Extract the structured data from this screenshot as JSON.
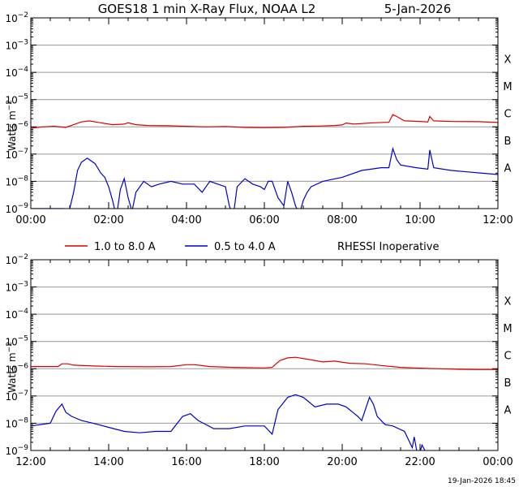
{
  "title": "GOES18 1 min X-Ray Flux, NOAA L2",
  "date": "5-Jan-2026",
  "footer_timestamp": "19-Jan-2026 18:45",
  "legend": {
    "long_label": "1.0 to 8.0 A",
    "short_label": "0.5 to 4.0 A",
    "note": "RHESSI Inoperative"
  },
  "colors": {
    "long": "#dd0000",
    "short": "#0000cc",
    "grid": "#999999",
    "axis": "#000000"
  },
  "chart_data": [
    {
      "type": "line",
      "title": "GOES18 1 min X-Ray Flux, NOAA L2  5-Jan-2026 (00:00-12:00)",
      "ylabel": "Watts m^-2",
      "yscale": "log",
      "ylim_exp": [
        -9,
        -2
      ],
      "ytick_exps": [
        -9,
        -8,
        -7,
        -6,
        -5,
        -4,
        -3,
        -2
      ],
      "xlim_hours": [
        0,
        12
      ],
      "xticks": [
        "00:00",
        "02:00",
        "04:00",
        "06:00",
        "08:00",
        "10:00",
        "12:00"
      ],
      "flare_classes": [
        {
          "label": "A",
          "exp": -8
        },
        {
          "label": "B",
          "exp": -7
        },
        {
          "label": "C",
          "exp": -6
        },
        {
          "label": "M",
          "exp": -5
        },
        {
          "label": "X",
          "exp": -4
        }
      ],
      "grid": true,
      "series": [
        {
          "name": "1.0 to 8.0 A",
          "color_key": "long",
          "points": [
            [
              0,
              -6.05
            ],
            [
              0.3,
              -6.0
            ],
            [
              0.6,
              -5.98
            ],
            [
              0.9,
              -6.02
            ],
            [
              1.1,
              -5.92
            ],
            [
              1.3,
              -5.82
            ],
            [
              1.5,
              -5.78
            ],
            [
              1.8,
              -5.85
            ],
            [
              2.1,
              -5.92
            ],
            [
              2.4,
              -5.9
            ],
            [
              2.5,
              -5.85
            ],
            [
              2.7,
              -5.92
            ],
            [
              3.0,
              -5.95
            ],
            [
              3.5,
              -5.96
            ],
            [
              4.0,
              -5.98
            ],
            [
              4.5,
              -6.0
            ],
            [
              5.0,
              -5.99
            ],
            [
              5.5,
              -6.02
            ],
            [
              6.0,
              -6.03
            ],
            [
              6.5,
              -6.02
            ],
            [
              7.0,
              -5.98
            ],
            [
              7.4,
              -5.97
            ],
            [
              7.8,
              -5.95
            ],
            [
              8.0,
              -5.93
            ],
            [
              8.1,
              -5.86
            ],
            [
              8.3,
              -5.9
            ],
            [
              8.8,
              -5.85
            ],
            [
              9.2,
              -5.83
            ],
            [
              9.3,
              -5.55
            ],
            [
              9.4,
              -5.62
            ],
            [
              9.6,
              -5.78
            ],
            [
              10.0,
              -5.8
            ],
            [
              10.2,
              -5.82
            ],
            [
              10.25,
              -5.62
            ],
            [
              10.35,
              -5.78
            ],
            [
              10.8,
              -5.8
            ],
            [
              11.5,
              -5.81
            ],
            [
              12.0,
              -5.84
            ]
          ]
        },
        {
          "name": "0.5 to 4.0 A",
          "color_key": "short",
          "points": [
            [
              0,
              -9.0
            ],
            [
              0.5,
              -9.0
            ],
            [
              0.85,
              -9.0
            ],
            [
              0.9,
              -9.3
            ],
            [
              1.0,
              -9.0
            ],
            [
              1.1,
              -8.4
            ],
            [
              1.2,
              -7.6
            ],
            [
              1.3,
              -7.3
            ],
            [
              1.45,
              -7.15
            ],
            [
              1.65,
              -7.35
            ],
            [
              1.8,
              -7.7
            ],
            [
              1.9,
              -7.85
            ],
            [
              2.0,
              -8.2
            ],
            [
              2.1,
              -8.7
            ],
            [
              2.2,
              -9.3
            ],
            [
              2.3,
              -8.3
            ],
            [
              2.4,
              -7.9
            ],
            [
              2.5,
              -8.6
            ],
            [
              2.6,
              -9.1
            ],
            [
              2.7,
              -8.4
            ],
            [
              2.9,
              -8.0
            ],
            [
              3.1,
              -8.2
            ],
            [
              3.3,
              -8.1
            ],
            [
              3.6,
              -8.0
            ],
            [
              3.9,
              -8.1
            ],
            [
              4.2,
              -8.1
            ],
            [
              4.4,
              -8.4
            ],
            [
              4.6,
              -8.0
            ],
            [
              4.8,
              -8.1
            ],
            [
              5.0,
              -8.2
            ],
            [
              5.1,
              -8.9
            ],
            [
              5.2,
              -9.3
            ],
            [
              5.3,
              -8.2
            ],
            [
              5.5,
              -7.9
            ],
            [
              5.7,
              -8.1
            ],
            [
              5.9,
              -8.2
            ],
            [
              6.0,
              -8.3
            ],
            [
              6.1,
              -8.0
            ],
            [
              6.2,
              -8.0
            ],
            [
              6.35,
              -8.6
            ],
            [
              6.5,
              -8.9
            ],
            [
              6.6,
              -8.0
            ],
            [
              6.7,
              -8.4
            ],
            [
              6.8,
              -8.9
            ],
            [
              6.9,
              -9.2
            ],
            [
              7.0,
              -8.7
            ],
            [
              7.1,
              -8.4
            ],
            [
              7.2,
              -8.2
            ],
            [
              7.5,
              -8.0
            ],
            [
              8.0,
              -7.85
            ],
            [
              8.5,
              -7.6
            ],
            [
              9.0,
              -7.5
            ],
            [
              9.2,
              -7.5
            ],
            [
              9.3,
              -6.8
            ],
            [
              9.4,
              -7.2
            ],
            [
              9.5,
              -7.4
            ],
            [
              9.9,
              -7.5
            ],
            [
              10.2,
              -7.55
            ],
            [
              10.25,
              -6.85
            ],
            [
              10.35,
              -7.5
            ],
            [
              10.8,
              -7.6
            ],
            [
              11.2,
              -7.65
            ],
            [
              11.6,
              -7.7
            ],
            [
              12.0,
              -7.75
            ]
          ]
        }
      ]
    },
    {
      "type": "line",
      "title": "GOES18 1 min X-Ray Flux, NOAA L2  5-Jan-2026 (12:00-24:00)",
      "ylabel": "Watts m^-2",
      "yscale": "log",
      "ylim_exp": [
        -9,
        -2
      ],
      "ytick_exps": [
        -9,
        -8,
        -7,
        -6,
        -5,
        -4,
        -3,
        -2
      ],
      "xlim_hours": [
        12,
        24
      ],
      "xticks": [
        "12:00",
        "14:00",
        "16:00",
        "18:00",
        "20:00",
        "22:00",
        "00:00"
      ],
      "flare_classes": [
        {
          "label": "A",
          "exp": -8
        },
        {
          "label": "B",
          "exp": -7
        },
        {
          "label": "C",
          "exp": -6
        },
        {
          "label": "M",
          "exp": -5
        },
        {
          "label": "X",
          "exp": -4
        }
      ],
      "grid": true,
      "series": [
        {
          "name": "1.0 to 8.0 A",
          "color_key": "long",
          "points": [
            [
              12.0,
              -5.92
            ],
            [
              12.7,
              -5.92
            ],
            [
              12.8,
              -5.82
            ],
            [
              12.95,
              -5.82
            ],
            [
              13.1,
              -5.87
            ],
            [
              13.6,
              -5.9
            ],
            [
              14.2,
              -5.92
            ],
            [
              15.0,
              -5.93
            ],
            [
              15.6,
              -5.92
            ],
            [
              16.0,
              -5.85
            ],
            [
              16.2,
              -5.85
            ],
            [
              16.6,
              -5.92
            ],
            [
              17.2,
              -5.95
            ],
            [
              18.0,
              -5.97
            ],
            [
              18.2,
              -5.95
            ],
            [
              18.4,
              -5.7
            ],
            [
              18.6,
              -5.6
            ],
            [
              18.8,
              -5.58
            ],
            [
              19.1,
              -5.65
            ],
            [
              19.5,
              -5.75
            ],
            [
              19.8,
              -5.72
            ],
            [
              20.2,
              -5.8
            ],
            [
              20.6,
              -5.82
            ],
            [
              21.0,
              -5.88
            ],
            [
              21.5,
              -5.95
            ],
            [
              22.0,
              -5.98
            ],
            [
              22.5,
              -6.0
            ],
            [
              23.0,
              -6.02
            ],
            [
              23.5,
              -6.03
            ],
            [
              24.0,
              -6.03
            ]
          ]
        },
        {
          "name": "0.5 to 4.0 A",
          "color_key": "short",
          "points": [
            [
              12.0,
              -8.1
            ],
            [
              12.5,
              -8.0
            ],
            [
              12.65,
              -7.55
            ],
            [
              12.8,
              -7.3
            ],
            [
              12.9,
              -7.6
            ],
            [
              13.05,
              -7.75
            ],
            [
              13.3,
              -7.9
            ],
            [
              13.6,
              -8.0
            ],
            [
              14.0,
              -8.15
            ],
            [
              14.4,
              -8.3
            ],
            [
              14.8,
              -8.35
            ],
            [
              15.2,
              -8.3
            ],
            [
              15.6,
              -8.3
            ],
            [
              15.9,
              -7.75
            ],
            [
              16.1,
              -7.65
            ],
            [
              16.3,
              -7.9
            ],
            [
              16.7,
              -8.2
            ],
            [
              17.1,
              -8.2
            ],
            [
              17.5,
              -8.1
            ],
            [
              18.0,
              -8.1
            ],
            [
              18.2,
              -8.4
            ],
            [
              18.35,
              -7.5
            ],
            [
              18.6,
              -7.05
            ],
            [
              18.8,
              -6.95
            ],
            [
              19.0,
              -7.05
            ],
            [
              19.3,
              -7.4
            ],
            [
              19.6,
              -7.3
            ],
            [
              19.9,
              -7.3
            ],
            [
              20.1,
              -7.4
            ],
            [
              20.4,
              -7.75
            ],
            [
              20.5,
              -7.9
            ],
            [
              20.7,
              -7.05
            ],
            [
              20.8,
              -7.3
            ],
            [
              20.9,
              -7.75
            ],
            [
              21.1,
              -8.05
            ],
            [
              21.3,
              -8.1
            ],
            [
              21.6,
              -8.3
            ],
            [
              21.8,
              -8.9
            ],
            [
              21.85,
              -8.5
            ],
            [
              21.95,
              -9.3
            ],
            [
              22.05,
              -8.8
            ],
            [
              22.2,
              -9.2
            ],
            [
              22.4,
              -9.3
            ]
          ]
        }
      ]
    }
  ]
}
